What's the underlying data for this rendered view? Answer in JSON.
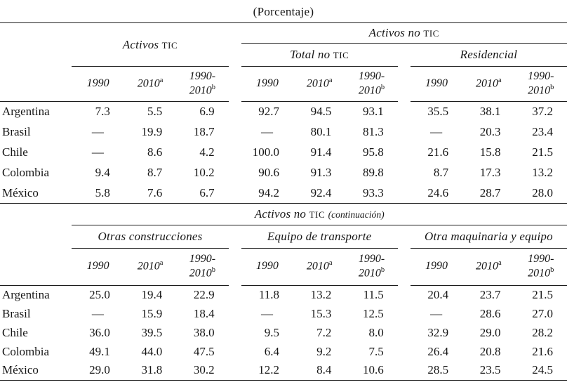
{
  "title": "(Porcentaje)",
  "year_columns": [
    {
      "t": "1990"
    },
    {
      "t": "2010",
      "sup": "a"
    },
    {
      "t": "1990-",
      "t2": "2010",
      "sup": "b"
    }
  ],
  "table1": {
    "left_group": "Activos TIC",
    "span_header": "Activos no TIC",
    "sub_groups": [
      "Total no TIC",
      "Residencial"
    ],
    "rows": [
      {
        "country": "Argentina",
        "values": [
          "7.3",
          "5.5",
          "6.9",
          "92.7",
          "94.5",
          "93.1",
          "35.5",
          "38.1",
          "37.2"
        ]
      },
      {
        "country": "Brasil",
        "values": [
          "—",
          "19.9",
          "18.7",
          "—",
          "80.1",
          "81.3",
          "—",
          "20.3",
          "23.4"
        ]
      },
      {
        "country": "Chile",
        "values": [
          "—",
          "8.6",
          "4.2",
          "100.0",
          "91.4",
          "95.8",
          "21.6",
          "15.8",
          "21.5"
        ]
      },
      {
        "country": "Colombia",
        "values": [
          "9.4",
          "8.7",
          "10.2",
          "90.6",
          "91.3",
          "89.8",
          "8.7",
          "17.3",
          "13.2"
        ]
      },
      {
        "country": "México",
        "values": [
          "5.8",
          "7.6",
          "6.7",
          "94.2",
          "92.4",
          "93.3",
          "24.6",
          "28.7",
          "28.0"
        ]
      }
    ]
  },
  "table2": {
    "span_header": "Activos no TIC (continuación)",
    "groups": [
      "Otras construcciones",
      "Equipo de transporte",
      "Otra maquinaria y equipo"
    ],
    "rows": [
      {
        "country": "Argentina",
        "values": [
          "25.0",
          "19.4",
          "22.9",
          "11.8",
          "13.2",
          "11.5",
          "20.4",
          "23.7",
          "21.5"
        ]
      },
      {
        "country": "Brasil",
        "values": [
          "—",
          "15.9",
          "18.4",
          "—",
          "15.3",
          "12.5",
          "—",
          "28.6",
          "27.0"
        ]
      },
      {
        "country": "Chile",
        "values": [
          "36.0",
          "39.5",
          "38.0",
          "9.5",
          "7.2",
          "8.0",
          "32.9",
          "29.0",
          "28.2"
        ]
      },
      {
        "country": "Colombia",
        "values": [
          "49.1",
          "44.0",
          "47.5",
          "6.4",
          "9.2",
          "7.5",
          "26.4",
          "20.8",
          "21.6"
        ]
      },
      {
        "country": "México",
        "values": [
          "29.0",
          "31.8",
          "30.2",
          "12.2",
          "8.4",
          "10.6",
          "28.5",
          "23.5",
          "24.5"
        ]
      }
    ]
  }
}
